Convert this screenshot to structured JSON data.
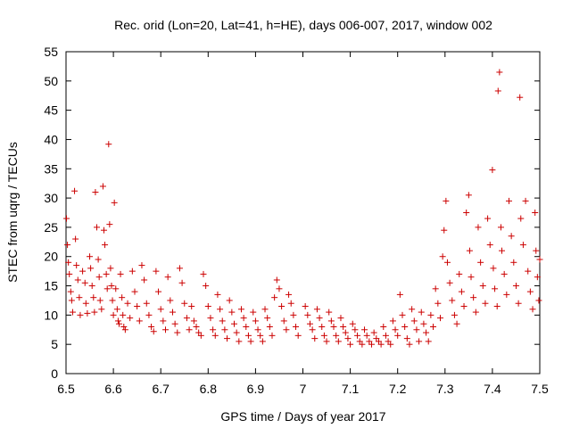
{
  "chart_data": {
    "type": "scatter",
    "title": "Rec. orid (Lon=20, Lat=41, h=HE), days 006-007, 2017, window 002",
    "xlabel": "GPS time / Days of year 2017",
    "ylabel": "STEC from uqrg / TECUs",
    "xlim": [
      6.5,
      7.5
    ],
    "ylim": [
      0,
      55
    ],
    "xticks": [
      6.5,
      6.6,
      6.7,
      6.8,
      6.9,
      7.0,
      7.1,
      7.2,
      7.3,
      7.4,
      7.5
    ],
    "xtick_labels": [
      "6.5",
      "6.6",
      "6.7",
      "6.8",
      "6.9",
      "7",
      "7.1",
      "7.2",
      "7.3",
      "7.4",
      "7.5"
    ],
    "yticks": [
      0,
      5,
      10,
      15,
      20,
      25,
      30,
      35,
      40,
      45,
      50,
      55
    ],
    "ytick_labels": [
      "0",
      "5",
      "10",
      "15",
      "20",
      "25",
      "30",
      "35",
      "40",
      "45",
      "50",
      "55"
    ],
    "grid": false,
    "marker": "+",
    "color": "#cc0000",
    "points": [
      [
        6.501,
        26.5
      ],
      [
        6.503,
        22
      ],
      [
        6.505,
        19
      ],
      [
        6.507,
        17
      ],
      [
        6.51,
        14
      ],
      [
        6.512,
        12.5
      ],
      [
        6.514,
        10.5
      ],
      [
        6.518,
        31.2
      ],
      [
        6.52,
        23
      ],
      [
        6.522,
        18.5
      ],
      [
        6.525,
        16
      ],
      [
        6.528,
        13
      ],
      [
        6.53,
        10
      ],
      [
        6.535,
        17.5
      ],
      [
        6.54,
        15.5
      ],
      [
        6.542,
        12
      ],
      [
        6.545,
        10.3
      ],
      [
        6.55,
        20
      ],
      [
        6.552,
        18
      ],
      [
        6.555,
        15
      ],
      [
        6.558,
        13
      ],
      [
        6.56,
        10.5
      ],
      [
        6.562,
        31
      ],
      [
        6.565,
        25
      ],
      [
        6.568,
        19.5
      ],
      [
        6.57,
        16.5
      ],
      [
        6.572,
        12.5
      ],
      [
        6.575,
        11
      ],
      [
        6.578,
        32
      ],
      [
        6.58,
        24.5
      ],
      [
        6.582,
        22
      ],
      [
        6.585,
        17
      ],
      [
        6.587,
        14.5
      ],
      [
        6.59,
        39.2
      ],
      [
        6.592,
        25.5
      ],
      [
        6.594,
        18
      ],
      [
        6.596,
        15
      ],
      [
        6.598,
        12.5
      ],
      [
        6.6,
        10
      ],
      [
        6.602,
        29.2
      ],
      [
        6.605,
        14.5
      ],
      [
        6.608,
        11
      ],
      [
        6.61,
        9
      ],
      [
        6.612,
        8.5
      ],
      [
        6.615,
        17
      ],
      [
        6.618,
        13
      ],
      [
        6.62,
        10
      ],
      [
        6.622,
        8
      ],
      [
        6.625,
        7.5
      ],
      [
        6.63,
        12
      ],
      [
        6.635,
        9.5
      ],
      [
        6.64,
        17.5
      ],
      [
        6.645,
        14
      ],
      [
        6.65,
        11.5
      ],
      [
        6.655,
        9
      ],
      [
        6.66,
        18.5
      ],
      [
        6.665,
        16
      ],
      [
        6.67,
        12
      ],
      [
        6.675,
        10
      ],
      [
        6.68,
        8
      ],
      [
        6.685,
        7.2
      ],
      [
        6.69,
        17.5
      ],
      [
        6.695,
        14
      ],
      [
        6.7,
        11
      ],
      [
        6.705,
        9
      ],
      [
        6.71,
        7.5
      ],
      [
        6.715,
        16.5
      ],
      [
        6.72,
        12.5
      ],
      [
        6.725,
        10.5
      ],
      [
        6.73,
        8.5
      ],
      [
        6.735,
        7
      ],
      [
        6.74,
        18
      ],
      [
        6.745,
        15.5
      ],
      [
        6.75,
        12
      ],
      [
        6.755,
        9.5
      ],
      [
        6.76,
        7.5
      ],
      [
        6.765,
        11.5
      ],
      [
        6.77,
        9
      ],
      [
        6.775,
        8
      ],
      [
        6.78,
        7
      ],
      [
        6.785,
        6.5
      ],
      [
        6.79,
        17
      ],
      [
        6.795,
        15
      ],
      [
        6.8,
        11.5
      ],
      [
        6.805,
        9.5
      ],
      [
        6.81,
        7.5
      ],
      [
        6.815,
        6.5
      ],
      [
        6.82,
        13.5
      ],
      [
        6.825,
        11
      ],
      [
        6.83,
        9
      ],
      [
        6.835,
        7.5
      ],
      [
        6.84,
        6
      ],
      [
        6.845,
        12.5
      ],
      [
        6.85,
        10.5
      ],
      [
        6.855,
        8.5
      ],
      [
        6.86,
        7
      ],
      [
        6.865,
        5.5
      ],
      [
        6.87,
        11
      ],
      [
        6.875,
        9.5
      ],
      [
        6.88,
        8
      ],
      [
        6.885,
        6.5
      ],
      [
        6.89,
        5.5
      ],
      [
        6.895,
        10.5
      ],
      [
        6.9,
        9
      ],
      [
        6.905,
        7.5
      ],
      [
        6.91,
        6.5
      ],
      [
        6.915,
        5.5
      ],
      [
        6.92,
        11
      ],
      [
        6.925,
        9.5
      ],
      [
        6.93,
        8
      ],
      [
        6.935,
        6.5
      ],
      [
        6.94,
        13
      ],
      [
        6.945,
        16
      ],
      [
        6.95,
        14.5
      ],
      [
        6.955,
        11.5
      ],
      [
        6.96,
        9
      ],
      [
        6.965,
        7.5
      ],
      [
        6.97,
        13.5
      ],
      [
        6.975,
        12
      ],
      [
        6.98,
        10
      ],
      [
        6.985,
        8
      ],
      [
        6.99,
        6.5
      ],
      [
        7.005,
        11.5
      ],
      [
        7.01,
        10
      ],
      [
        7.015,
        8.5
      ],
      [
        7.02,
        7.5
      ],
      [
        7.025,
        6
      ],
      [
        7.03,
        11
      ],
      [
        7.035,
        9.5
      ],
      [
        7.04,
        8
      ],
      [
        7.045,
        6.5
      ],
      [
        7.05,
        5.5
      ],
      [
        7.055,
        10.5
      ],
      [
        7.06,
        9
      ],
      [
        7.065,
        8
      ],
      [
        7.07,
        6.5
      ],
      [
        7.075,
        5.5
      ],
      [
        7.08,
        9.5
      ],
      [
        7.085,
        8
      ],
      [
        7.09,
        7
      ],
      [
        7.095,
        6
      ],
      [
        7.1,
        5
      ],
      [
        7.105,
        8.5
      ],
      [
        7.11,
        7.5
      ],
      [
        7.115,
        6.5
      ],
      [
        7.12,
        5.5
      ],
      [
        7.125,
        5
      ],
      [
        7.13,
        7.5
      ],
      [
        7.135,
        6.5
      ],
      [
        7.14,
        5.5
      ],
      [
        7.145,
        5
      ],
      [
        7.15,
        7
      ],
      [
        7.155,
        6
      ],
      [
        7.16,
        5.5
      ],
      [
        7.165,
        5
      ],
      [
        7.17,
        8
      ],
      [
        7.175,
        6.5
      ],
      [
        7.18,
        5.5
      ],
      [
        7.185,
        5
      ],
      [
        7.19,
        9
      ],
      [
        7.195,
        7.5
      ],
      [
        7.2,
        6.5
      ],
      [
        7.205,
        13.5
      ],
      [
        7.21,
        10
      ],
      [
        7.215,
        8
      ],
      [
        7.22,
        6
      ],
      [
        7.225,
        5
      ],
      [
        7.23,
        11
      ],
      [
        7.235,
        9
      ],
      [
        7.24,
        7.5
      ],
      [
        7.245,
        5.5
      ],
      [
        7.25,
        10.5
      ],
      [
        7.255,
        8.5
      ],
      [
        7.26,
        7
      ],
      [
        7.265,
        5.5
      ],
      [
        7.27,
        10
      ],
      [
        7.275,
        8
      ],
      [
        7.28,
        14.5
      ],
      [
        7.285,
        12
      ],
      [
        7.29,
        9.5
      ],
      [
        7.295,
        20
      ],
      [
        7.298,
        24.5
      ],
      [
        7.302,
        29.5
      ],
      [
        7.305,
        19
      ],
      [
        7.31,
        15.5
      ],
      [
        7.315,
        12.5
      ],
      [
        7.32,
        10
      ],
      [
        7.325,
        8.5
      ],
      [
        7.33,
        17
      ],
      [
        7.335,
        14
      ],
      [
        7.34,
        11.5
      ],
      [
        7.345,
        27.5
      ],
      [
        7.35,
        30.5
      ],
      [
        7.352,
        21
      ],
      [
        7.355,
        16.5
      ],
      [
        7.36,
        13
      ],
      [
        7.365,
        10.5
      ],
      [
        7.37,
        25
      ],
      [
        7.375,
        19
      ],
      [
        7.38,
        15
      ],
      [
        7.385,
        12
      ],
      [
        7.39,
        26.5
      ],
      [
        7.395,
        22
      ],
      [
        7.4,
        34.8
      ],
      [
        7.402,
        18
      ],
      [
        7.405,
        14.5
      ],
      [
        7.41,
        11.5
      ],
      [
        7.412,
        48.3
      ],
      [
        7.415,
        51.5
      ],
      [
        7.418,
        25
      ],
      [
        7.42,
        21
      ],
      [
        7.425,
        17
      ],
      [
        7.43,
        13.5
      ],
      [
        7.435,
        29.5
      ],
      [
        7.44,
        23.5
      ],
      [
        7.445,
        19
      ],
      [
        7.45,
        15
      ],
      [
        7.455,
        12
      ],
      [
        7.458,
        47.2
      ],
      [
        7.46,
        26.5
      ],
      [
        7.465,
        22
      ],
      [
        7.47,
        29.5
      ],
      [
        7.475,
        17.5
      ],
      [
        7.48,
        14
      ],
      [
        7.485,
        11
      ],
      [
        7.49,
        27.5
      ],
      [
        7.492,
        21
      ],
      [
        7.495,
        16.5
      ],
      [
        7.498,
        12.5
      ],
      [
        7.5,
        19.5
      ]
    ]
  }
}
